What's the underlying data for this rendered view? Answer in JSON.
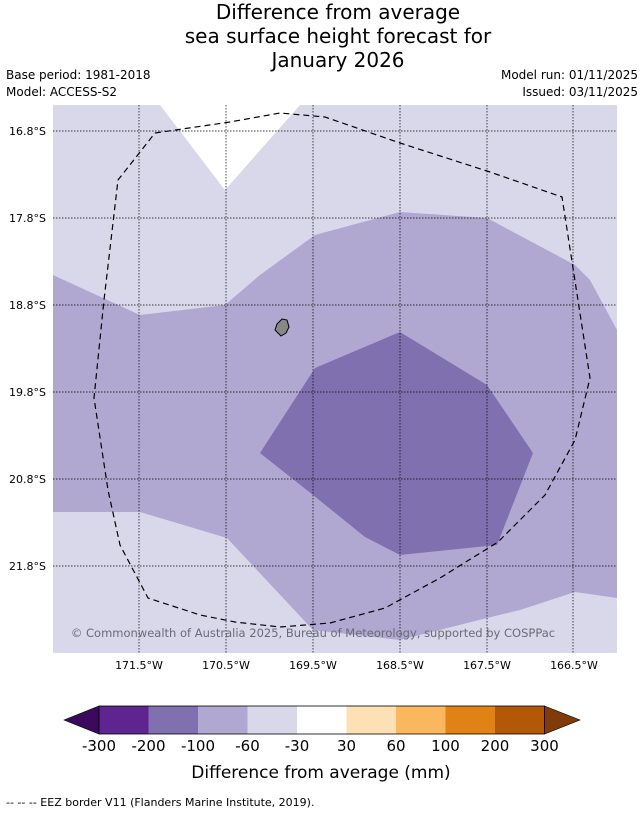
{
  "title": {
    "line1": "Difference from average",
    "line2": "sea surface height forecast for",
    "line3": "January 2026"
  },
  "meta": {
    "base_period": "Base period: 1981-2018",
    "model": "Model: ACCESS-S2",
    "model_run": "Model run: 01/11/2025",
    "issued": "Issued: 03/11/2025"
  },
  "map": {
    "lat_labels": [
      "16.8°S",
      "17.8°S",
      "18.8°S",
      "19.8°S",
      "20.8°S",
      "21.8°S"
    ],
    "lon_labels": [
      "171.5°W",
      "170.5°W",
      "169.5°W",
      "168.5°W",
      "167.5°W",
      "166.5°W"
    ],
    "copyright": "© Commonwealth of Australia 2025, Bureau of Meteorology, supported by COSPPac"
  },
  "colorbar": {
    "ticks": [
      "-300",
      "-200",
      "-100",
      "-60",
      "-30",
      "30",
      "60",
      "100",
      "200",
      "300"
    ],
    "colors": [
      "#3b0a5e",
      "#5e2590",
      "#8070b0",
      "#b0a8d0",
      "#d8d8ea",
      "#ffffff",
      "#fde0b4",
      "#fbb75e",
      "#e08214",
      "#b35806",
      "#7f3b08"
    ],
    "label": "Difference from average (mm)"
  },
  "footnote": "--  --  -- EEZ border V11 (Flanders Marine Institute, 2019)."
}
